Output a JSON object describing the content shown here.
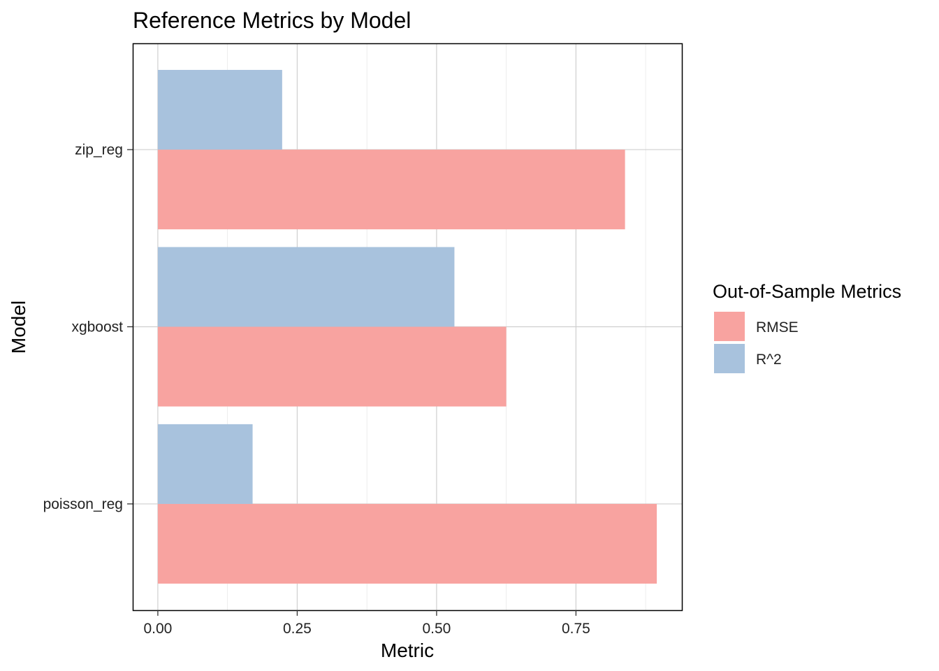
{
  "chart_data": {
    "type": "bar",
    "orientation": "horizontal",
    "title": "Reference Metrics by Model",
    "xlabel": "Metric",
    "ylabel": "Model",
    "categories": [
      "poisson_reg",
      "xgboost",
      "zip_reg"
    ],
    "series": [
      {
        "name": "RMSE",
        "color": "#F8A3A0",
        "values": [
          0.895,
          0.625,
          0.838
        ]
      },
      {
        "name": "R^2",
        "color": "#A8C2DD",
        "values": [
          0.17,
          0.532,
          0.223
        ]
      }
    ],
    "xlim": [
      -0.045,
      0.94
    ],
    "xticks": [
      0,
      0.25,
      0.5,
      0.75
    ],
    "xtick_labels": [
      "0.00",
      "0.25",
      "0.50",
      "0.75"
    ],
    "grid": true,
    "legend": {
      "title": "Out-of-Sample Metrics",
      "position": "right"
    }
  }
}
